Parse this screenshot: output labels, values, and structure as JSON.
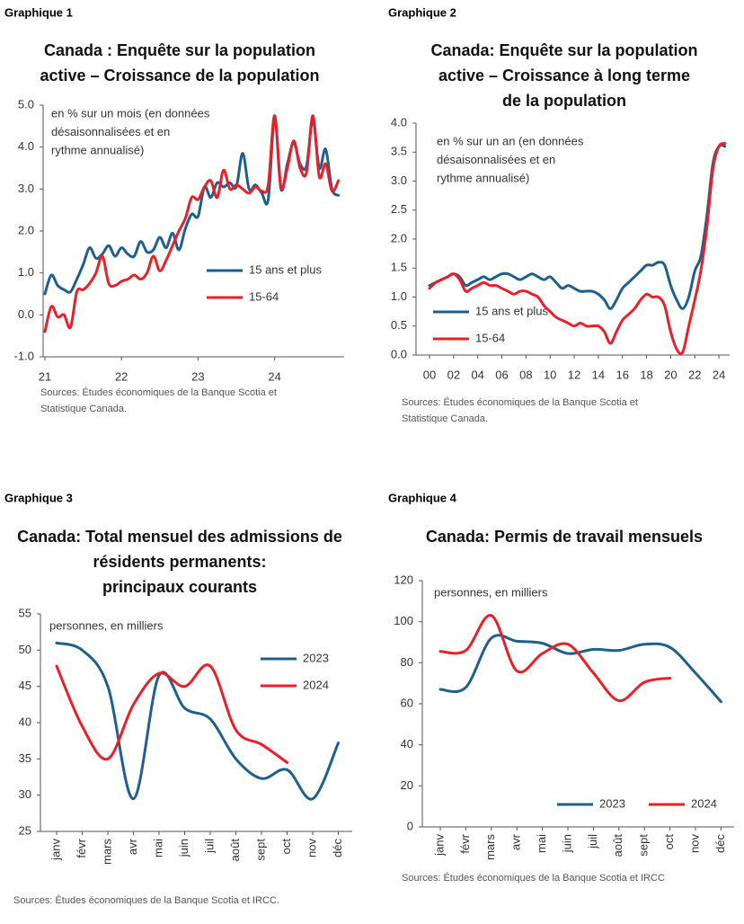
{
  "chart_data": [
    {
      "type": "line",
      "figure_label": "Graphique 1",
      "title": [
        "Canada : Enquête sur la population",
        "active – Croissance de la population"
      ],
      "annotation": [
        "en % sur un mois (en données",
        "désaisonnalisées et en",
        "rythme annualisé)"
      ],
      "sources": [
        "Sources: Études économiques de la Banque Scotia et",
        "Statistique Canada."
      ],
      "categories": [
        "21",
        null,
        null,
        null,
        null,
        null,
        null,
        null,
        null,
        null,
        null,
        null,
        "22",
        null,
        null,
        null,
        null,
        null,
        null,
        null,
        null,
        null,
        null,
        null,
        "23",
        null,
        null,
        null,
        null,
        null,
        null,
        null,
        null,
        null,
        null,
        null,
        "24",
        null,
        null,
        null,
        null,
        null,
        null,
        null,
        null,
        null,
        null
      ],
      "series": [
        {
          "name": "15 ans et plus",
          "color": "#1f5f8b",
          "values": [
            0.5,
            0.95,
            0.7,
            0.6,
            0.55,
            0.85,
            1.2,
            1.6,
            1.35,
            1.45,
            1.65,
            1.4,
            1.6,
            1.45,
            1.4,
            1.75,
            1.5,
            1.55,
            1.85,
            1.6,
            1.95,
            1.55,
            2.05,
            2.4,
            2.35,
            3.05,
            2.8,
            3.15,
            3.05,
            3.15,
            3.05,
            3.85,
            3.0,
            3.1,
            2.9,
            2.75,
            4.7,
            3.0,
            3.6,
            4.1,
            3.6,
            3.55,
            4.65,
            3.5,
            3.95,
            3.0,
            2.85
          ]
        },
        {
          "name": "15-64",
          "color": "#e8202a",
          "values": [
            -0.4,
            0.2,
            -0.05,
            0,
            -0.3,
            0.55,
            0.6,
            0.75,
            1.0,
            1.4,
            0.75,
            0.7,
            0.8,
            0.85,
            0.95,
            0.85,
            1.0,
            1.4,
            1.05,
            1.3,
            1.65,
            2.0,
            2.3,
            2.8,
            2.75,
            3.05,
            3.2,
            2.8,
            3.45,
            3.0,
            3.1,
            3.0,
            2.9,
            3.05,
            2.95,
            3.1,
            4.75,
            3.05,
            3.5,
            4.15,
            3.5,
            3.4,
            4.75,
            3.3,
            3.6,
            2.95,
            3.2
          ]
        }
      ],
      "ylim": [
        -1,
        5
      ],
      "yticks": [
        {
          "value": -1,
          "label": "-1.0"
        },
        {
          "value": 0,
          "label": "0.0"
        },
        {
          "value": 1,
          "label": "1.0"
        },
        {
          "value": 2,
          "label": "2.0"
        },
        {
          "value": 3,
          "label": "3.0"
        },
        {
          "value": 4,
          "label": "4.0"
        },
        {
          "value": 5,
          "label": "5.0"
        }
      ],
      "legend": "right"
    },
    {
      "type": "line",
      "figure_label": "Graphique 2",
      "title": [
        "Canada: Enquête sur la population",
        "active –  Croissance à long terme",
        "de la population"
      ],
      "annotation": [
        "en % sur un an (en données",
        "désaisonnalisées et en",
        "rythme annualisé)"
      ],
      "sources": [
        "Sources: Études économiques de la Banque Scotia et",
        "Statistique Canada."
      ],
      "categories": [
        "00",
        null,
        null,
        null,
        "02",
        null,
        null,
        null,
        "04",
        null,
        null,
        null,
        "06",
        null,
        null,
        null,
        "08",
        null,
        null,
        null,
        "10",
        null,
        null,
        null,
        "12",
        null,
        null,
        null,
        "14",
        null,
        null,
        null,
        "16",
        null,
        null,
        null,
        "18",
        null,
        null,
        null,
        "20",
        null,
        null,
        null,
        "22",
        null,
        null,
        null,
        "24",
        null
      ],
      "series": [
        {
          "name": "15 ans et plus",
          "color": "#1f5f8b",
          "values": [
            1.2,
            1.25,
            1.3,
            1.35,
            1.4,
            1.35,
            1.2,
            1.25,
            1.3,
            1.35,
            1.3,
            1.35,
            1.4,
            1.4,
            1.35,
            1.3,
            1.35,
            1.4,
            1.35,
            1.3,
            1.35,
            1.25,
            1.15,
            1.2,
            1.15,
            1.1,
            1.1,
            1.1,
            1.05,
            0.95,
            0.8,
            0.95,
            1.15,
            1.25,
            1.35,
            1.45,
            1.55,
            1.55,
            1.6,
            1.55,
            1.2,
            0.95,
            0.8,
            1.0,
            1.45,
            1.7,
            2.4,
            3.3,
            3.6,
            3.6
          ]
        },
        {
          "name": "15-64",
          "color": "#e8202a",
          "values": [
            1.15,
            1.25,
            1.3,
            1.35,
            1.4,
            1.3,
            1.1,
            1.15,
            1.2,
            1.25,
            1.2,
            1.2,
            1.15,
            1.1,
            1.05,
            1.1,
            1.1,
            1.05,
            1.0,
            0.85,
            0.75,
            0.65,
            0.6,
            0.55,
            0.5,
            0.55,
            0.5,
            0.5,
            0.5,
            0.4,
            0.2,
            0.4,
            0.6,
            0.7,
            0.8,
            0.95,
            1.05,
            1.0,
            1.0,
            0.85,
            0.4,
            0.1,
            0.05,
            0.5,
            0.95,
            1.45,
            2.2,
            3.2,
            3.6,
            3.65
          ]
        }
      ],
      "ylim": [
        0,
        4
      ],
      "yticks": [
        {
          "value": 0,
          "label": "0.0"
        },
        0.5,
        {
          "value": 1,
          "label": "1.0"
        },
        1.5,
        {
          "value": 2,
          "label": "2.0"
        },
        2.5,
        {
          "value": 3,
          "label": "3.0"
        },
        3.5,
        {
          "value": 4,
          "label": "4.0"
        }
      ],
      "legend": "right"
    },
    {
      "type": "line",
      "figure_label": "Graphique 3",
      "title": [
        "Canada: Total mensuel des admissions de",
        "résidents permanents:",
        "principaux courants"
      ],
      "annotation": [
        "personnes, en milliers"
      ],
      "sources": [
        "Sources: Études économiques de la Banque Scotia et IRCC."
      ],
      "categories": [
        "janv",
        "févr",
        "mars",
        "avr",
        "mai",
        "juin",
        "juil",
        "août",
        "sept",
        "oct",
        "nov",
        "déc"
      ],
      "series": [
        {
          "name": "2023",
          "color": "#1f5f8b",
          "values": [
            51,
            50,
            45,
            29.5,
            46.5,
            42,
            40.5,
            35,
            32.3,
            33.5,
            29.5,
            37.2
          ]
        },
        {
          "name": "2024",
          "color": "#e8202a",
          "values": [
            47.8,
            39.5,
            35,
            42.5,
            46.8,
            45,
            47.8,
            39,
            37,
            34.5,
            null,
            null
          ]
        }
      ],
      "ylim": [
        25,
        55
      ],
      "yticks": [
        25,
        30,
        35,
        40,
        45,
        50,
        55
      ],
      "legend": "right"
    },
    {
      "type": "line",
      "figure_label": "Graphique 4",
      "title": [
        "Canada: Permis de travail mensuels"
      ],
      "annotation": [
        "personnes, en milliers"
      ],
      "sources": [
        "Sources: Études économiques de la Banque Scotia et IRCC"
      ],
      "categories": [
        "janv",
        "févr",
        "mars",
        "avr",
        "mai",
        "juin",
        "juil",
        "août",
        "sept",
        "oct",
        "nov",
        "déc"
      ],
      "series": [
        {
          "name": "2023",
          "color": "#1f5f8b",
          "values": [
            67,
            68,
            92,
            90.5,
            89.5,
            84.5,
            86.5,
            86,
            89,
            87.5,
            75,
            61
          ]
        },
        {
          "name": "2024",
          "color": "#e8202a",
          "values": [
            85.5,
            86,
            103,
            76,
            84.5,
            89,
            75,
            61.5,
            70.5,
            72.5,
            null,
            null
          ]
        }
      ],
      "ylim": [
        0,
        120
      ],
      "yticks": [
        0,
        20,
        40,
        60,
        80,
        100,
        120
      ],
      "legend": "bottom"
    }
  ]
}
